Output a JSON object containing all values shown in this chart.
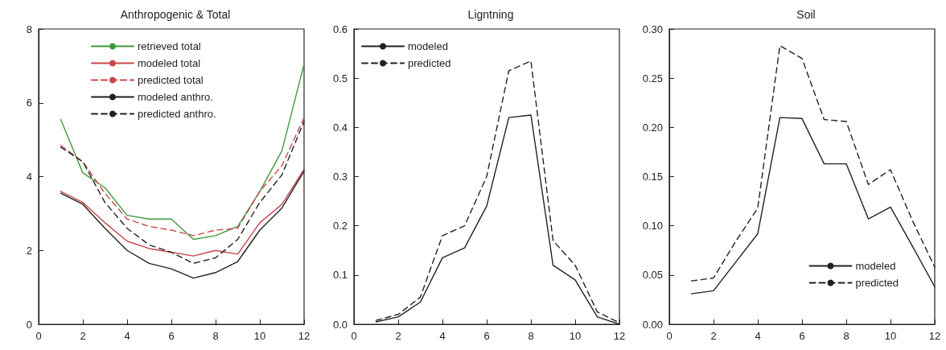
{
  "chart_data": [
    {
      "type": "line",
      "title": "Anthropogenic & Total",
      "x": [
        1,
        2,
        3,
        4,
        5,
        6,
        7,
        8,
        9,
        10,
        11,
        12
      ],
      "xlim": [
        0,
        12
      ],
      "xticks": [
        0,
        2,
        4,
        6,
        8,
        10,
        12
      ],
      "ylim": [
        0,
        8
      ],
      "yticks": [
        0,
        2,
        4,
        6,
        8
      ],
      "grid": false,
      "legend": "top",
      "marker": "none",
      "series": [
        {
          "name": "retrieved total",
          "color": "#3f9a3f",
          "line_style": "solid",
          "values": [
            5.55,
            4.1,
            3.7,
            2.95,
            2.85,
            2.85,
            2.3,
            2.4,
            2.65,
            3.6,
            4.7,
            7.05
          ]
        },
        {
          "name": "modeled total",
          "color": "#c8464a",
          "line_style": "solid",
          "values": [
            3.6,
            3.3,
            2.75,
            2.25,
            2.05,
            1.95,
            1.85,
            2.0,
            1.9,
            2.75,
            3.25,
            4.2
          ]
        },
        {
          "name": "predicted total",
          "color": "#c8464a",
          "line_style": "dashed",
          "values": [
            4.85,
            4.4,
            3.55,
            2.85,
            2.65,
            2.55,
            2.4,
            2.55,
            2.6,
            3.6,
            4.3,
            5.6
          ]
        },
        {
          "name": "modeled anthro.",
          "color": "#222222",
          "line_style": "solid",
          "values": [
            3.55,
            3.25,
            2.6,
            2.0,
            1.65,
            1.5,
            1.25,
            1.4,
            1.7,
            2.55,
            3.15,
            4.15
          ]
        },
        {
          "name": "predicted anthro.",
          "color": "#222222",
          "line_style": "dashed",
          "values": [
            4.8,
            4.4,
            3.3,
            2.6,
            2.15,
            1.95,
            1.65,
            1.8,
            2.3,
            3.3,
            4.05,
            5.5
          ]
        }
      ]
    },
    {
      "type": "line",
      "title": "Ligntning",
      "x": [
        1,
        2,
        3,
        4,
        5,
        6,
        7,
        8,
        9,
        10,
        11,
        12
      ],
      "xlim": [
        0,
        12
      ],
      "xticks": [
        0,
        2,
        4,
        6,
        8,
        10,
        12
      ],
      "ylim": [
        0,
        0.6
      ],
      "yticks": [
        {
          "value": 0,
          "label": "0.0"
        },
        0.1,
        0.2,
        0.3,
        0.4,
        0.5,
        0.6
      ],
      "grid": false,
      "legend": "top left",
      "marker": "none",
      "series": [
        {
          "name": "modeled",
          "color": "#222222",
          "line_style": "solid",
          "values": [
            0.005,
            0.015,
            0.045,
            0.135,
            0.155,
            0.24,
            0.42,
            0.425,
            0.12,
            0.09,
            0.015,
            0.0
          ]
        },
        {
          "name": "predicted",
          "color": "#222222",
          "line_style": "dashed",
          "values": [
            0.008,
            0.02,
            0.055,
            0.18,
            0.2,
            0.3,
            0.515,
            0.535,
            0.17,
            0.12,
            0.025,
            0.003
          ]
        }
      ]
    },
    {
      "type": "line",
      "title": "Soil",
      "x": [
        1,
        2,
        3,
        4,
        5,
        6,
        7,
        8,
        9,
        10,
        11,
        12
      ],
      "xlim": [
        0,
        12
      ],
      "xticks": [
        0,
        2,
        4,
        6,
        8,
        10,
        12
      ],
      "ylim": [
        0,
        0.3
      ],
      "yticks": [
        {
          "value": 0,
          "label": "0.00"
        },
        0.05,
        {
          "value": 0.1,
          "label": "0.10"
        },
        0.15,
        {
          "value": 0.2,
          "label": "0.20"
        },
        0.25,
        {
          "value": 0.3,
          "label": "0.30"
        }
      ],
      "grid": false,
      "legend": "bottom right",
      "marker": "none",
      "series": [
        {
          "name": "modeled",
          "color": "#222222",
          "line_style": "solid",
          "values": [
            0.031,
            0.034,
            0.063,
            0.092,
            0.21,
            0.209,
            0.163,
            0.163,
            0.107,
            0.119,
            0.079,
            0.038
          ]
        },
        {
          "name": "predicted",
          "color": "#222222",
          "line_style": "dashed",
          "values": [
            0.044,
            0.047,
            0.084,
            0.118,
            0.283,
            0.27,
            0.208,
            0.206,
            0.142,
            0.157,
            0.105,
            0.058
          ]
        }
      ]
    }
  ]
}
